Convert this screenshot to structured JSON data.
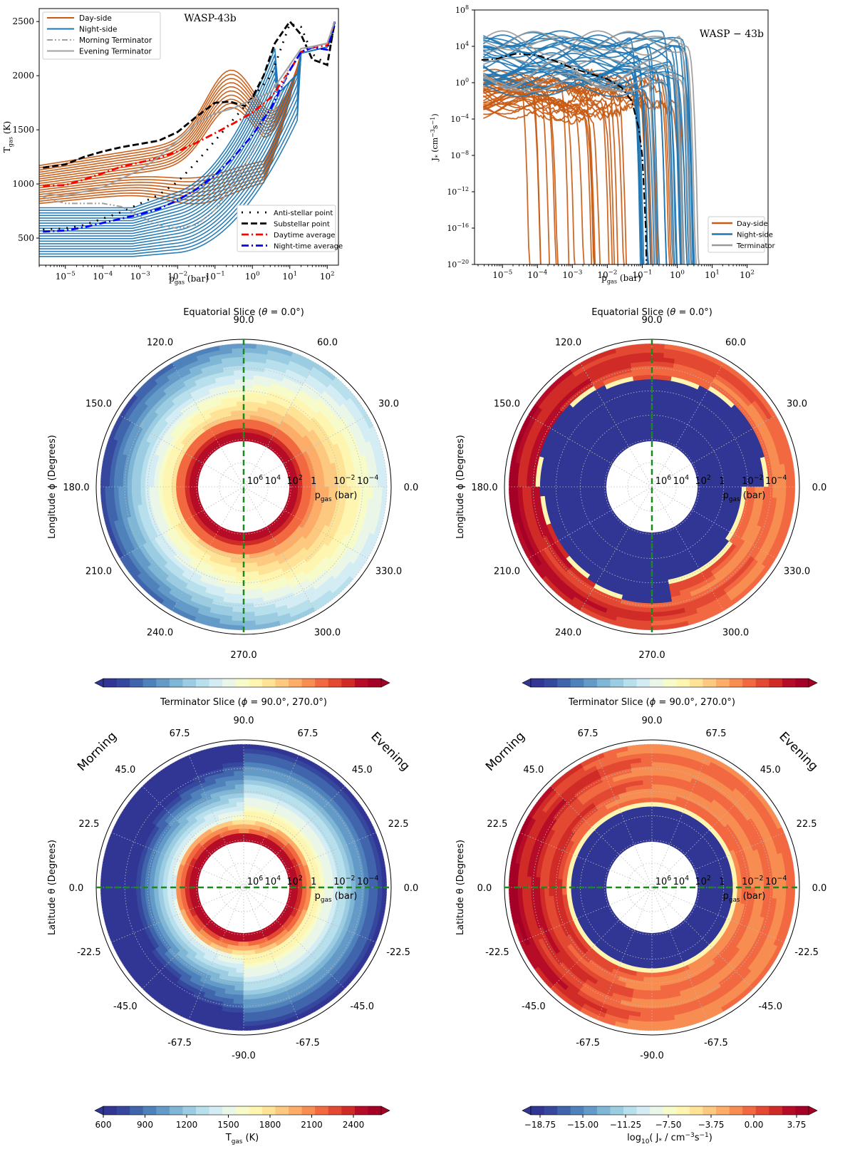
{
  "chart_data": [
    {
      "id": "tp_profiles",
      "type": "line",
      "title": "WASP-43b",
      "xlabel": "p_gas (bar)",
      "xlabel_main": "p",
      "xlabel_sub": "gas",
      "xlabel_unit": "(bar)",
      "ylabel": "T_gas (K)",
      "ylabel_main": "T",
      "ylabel_sub": "gas",
      "ylabel_unit": "(K)",
      "xscale": "log",
      "xlim_log10": [
        -5.7,
        2.3
      ],
      "ylim": [
        250,
        2620
      ],
      "xticks": [
        {
          "exp": -5,
          "label": "10",
          "sup": "−5"
        },
        {
          "exp": -4,
          "label": "10",
          "sup": "−4"
        },
        {
          "exp": -3,
          "label": "10",
          "sup": "−3"
        },
        {
          "exp": -2,
          "label": "10",
          "sup": "−2"
        },
        {
          "exp": -1,
          "label": "10",
          "sup": "−1"
        },
        {
          "exp": 0,
          "label": "10",
          "sup": "0"
        },
        {
          "exp": 1,
          "label": "10",
          "sup": "1"
        },
        {
          "exp": 2,
          "label": "10",
          "sup": "2"
        }
      ],
      "yticks": [
        500,
        1000,
        1500,
        2000,
        2500
      ],
      "legend_upper_left": [
        {
          "label": "Day-side",
          "color": "#c85a12",
          "style": "solid"
        },
        {
          "label": "Night-side",
          "color": "#1f77b4",
          "style": "solid"
        },
        {
          "label": "Morning Terminator",
          "color": "#a0a0a0",
          "style": "dashdotdot"
        },
        {
          "label": "Evening Terminator",
          "color": "#a0a0a0",
          "style": "solid"
        }
      ],
      "legend_lower_right": [
        {
          "label": "Anti-stellar point",
          "color": "#000000",
          "style": "dotted"
        },
        {
          "label": "Substellar point",
          "color": "#000000",
          "style": "dashed"
        },
        {
          "label": "Daytime average",
          "color": "#ff0000",
          "style": "dashdot"
        },
        {
          "label": "Night-time average",
          "color": "#0000ff",
          "style": "dashdot"
        }
      ],
      "series": [
        {
          "name": "Substellar point",
          "color": "#000000",
          "style": "dashed",
          "x_log10": [
            -5.6,
            -5,
            -4.5,
            -4,
            -3.5,
            -3,
            -2.5,
            -2,
            -1.5,
            -1,
            -0.6,
            -0.2,
            0,
            0.3,
            0.6,
            1,
            1.3,
            1.6,
            2,
            2.2
          ],
          "y": [
            1150,
            1180,
            1250,
            1300,
            1340,
            1370,
            1400,
            1480,
            1620,
            1750,
            1760,
            1720,
            1800,
            2000,
            2300,
            2500,
            2380,
            2150,
            2100,
            2500
          ]
        },
        {
          "name": "Anti-stellar point",
          "color": "#000000",
          "style": "dotted",
          "x_log10": [
            -5.6,
            -5,
            -4.5,
            -4,
            -3.5,
            -3,
            -2.5,
            -2,
            -1.5,
            -1,
            -0.5,
            0,
            0.5,
            1,
            1.3,
            1.6,
            2,
            2.2
          ],
          "y": [
            580,
            590,
            620,
            680,
            740,
            820,
            900,
            1020,
            1200,
            1400,
            1600,
            1800,
            2000,
            2480,
            2450,
            2200,
            2100,
            2500
          ]
        },
        {
          "name": "Daytime average",
          "color": "#ff0000",
          "style": "dashdot",
          "x_log10": [
            -5.6,
            -5,
            -4.5,
            -4,
            -3.5,
            -3,
            -2.5,
            -2,
            -1.5,
            -1,
            -0.5,
            0,
            0.5,
            1,
            1.3,
            1.6,
            2,
            2.2
          ],
          "y": [
            980,
            990,
            1040,
            1100,
            1160,
            1200,
            1240,
            1300,
            1380,
            1470,
            1560,
            1660,
            1800,
            2050,
            2220,
            2260,
            2280,
            2500
          ]
        },
        {
          "name": "Night-time average",
          "color": "#0000ff",
          "style": "dashdot",
          "x_log10": [
            -5.6,
            -5,
            -4.5,
            -4,
            -3.5,
            -3,
            -2.5,
            -2,
            -1.5,
            -1,
            -0.5,
            0,
            0.5,
            1,
            1.3,
            1.6,
            2,
            2.2
          ],
          "y": [
            560,
            570,
            600,
            640,
            680,
            720,
            770,
            850,
            950,
            1080,
            1250,
            1450,
            1700,
            2050,
            2220,
            2260,
            2240,
            2500
          ]
        },
        {
          "name": "Morning Terminator",
          "color": "#a0a0a0",
          "style": "dashdotdot",
          "x_log10": [
            -5.6,
            -5,
            -4.5,
            -4,
            -3.5,
            -3,
            -2.5,
            -2,
            -1.5,
            -1,
            -0.5,
            0,
            0.5,
            1,
            1.3,
            1.6,
            2,
            2.2
          ],
          "y": [
            880,
            820,
            820,
            820,
            790,
            700,
            620,
            590,
            620,
            760,
            1000,
            1300,
            1600,
            2100,
            2250,
            2260,
            2300,
            2500
          ]
        },
        {
          "name": "Evening Terminator",
          "color": "#a0a0a0",
          "style": "solid",
          "x_log10": [
            -5.6,
            -5,
            -4.5,
            -4,
            -3.5,
            -3,
            -2.5,
            -2,
            -1.5,
            -1,
            -0.5,
            0,
            0.5,
            1,
            1.3,
            1.6,
            2,
            2.2
          ],
          "y": [
            910,
            890,
            930,
            970,
            1050,
            1130,
            1250,
            1400,
            1560,
            1650,
            1700,
            1780,
            1850,
            2100,
            2250,
            2270,
            2300,
            2500
          ]
        }
      ],
      "bundles": [
        {
          "name": "Day-side",
          "color": "#c85a12",
          "count": 18,
          "y_low_start": 820,
          "y_high_start": 1170
        },
        {
          "name": "Night-side",
          "color": "#1f77b4",
          "count": 20,
          "y_low_start": 330,
          "y_high_start": 780
        }
      ]
    },
    {
      "id": "nucleation_profiles",
      "type": "line",
      "title": "WASP − 43b",
      "xlabel": "p_gas (bar)",
      "xlabel_main": "p",
      "xlabel_sub": "gas",
      "xlabel_unit": "(bar)",
      "ylabel": "J* (cm^-3 s^-1)",
      "ylabel_main": "J",
      "ylabel_sub": "*",
      "ylabel_unit": "(cm",
      "xscale": "log",
      "yscale": "log",
      "xlim_log10": [
        -5.8,
        2.6
      ],
      "ylim_log10": [
        -20,
        8
      ],
      "xticks": [
        {
          "exp": -5,
          "label": "10",
          "sup": "−5"
        },
        {
          "exp": -4,
          "label": "10",
          "sup": "−4"
        },
        {
          "exp": -3,
          "label": "10",
          "sup": "−3"
        },
        {
          "exp": -2,
          "label": "10",
          "sup": "−2"
        },
        {
          "exp": -1,
          "label": "10",
          "sup": "−1"
        },
        {
          "exp": 0,
          "label": "10",
          "sup": "0"
        },
        {
          "exp": 1,
          "label": "10",
          "sup": "1"
        },
        {
          "exp": 2,
          "label": "10",
          "sup": "2"
        }
      ],
      "yticks": [
        {
          "exp": 8,
          "label": "10",
          "sup": "8"
        },
        {
          "exp": 4,
          "label": "10",
          "sup": "4"
        },
        {
          "exp": 0,
          "label": "10",
          "sup": "0"
        },
        {
          "exp": -4,
          "label": "10",
          "sup": "−4"
        },
        {
          "exp": -8,
          "label": "10",
          "sup": "−8"
        },
        {
          "exp": -12,
          "label": "10",
          "sup": "−12"
        },
        {
          "exp": -16,
          "label": "10",
          "sup": "−16"
        },
        {
          "exp": -20,
          "label": "10",
          "sup": "−20"
        }
      ],
      "legend": [
        {
          "label": "Day-side",
          "color": "#c85a12"
        },
        {
          "label": "Night-side",
          "color": "#1f77b4"
        },
        {
          "label": "Terminator",
          "color": "#999999"
        }
      ],
      "bundles": [
        {
          "name": "Day-side",
          "color": "#c85a12",
          "count": 30,
          "y_start_range_log10": [
            -3,
            0.5
          ],
          "cutoff_range_log10": [
            -4.6,
            0.3
          ]
        },
        {
          "name": "Night-side",
          "color": "#1f77b4",
          "count": 30,
          "y_start_range_log10": [
            -1,
            5
          ],
          "cutoff_range_log10": [
            -1.2,
            0.55
          ]
        },
        {
          "name": "Terminator",
          "color": "#999999",
          "count": 8,
          "y_start_range_log10": [
            -0.5,
            4.8
          ],
          "cutoff_range_log10": [
            -1.3,
            0.55
          ]
        }
      ],
      "series": [
        {
          "name": "Substellar point",
          "color": "#000000",
          "style": "dashdot",
          "x_log10": [
            -5.6,
            -5.2,
            -4.6,
            -4,
            -3.5,
            -3,
            -2.5,
            -2,
            -1.6,
            -1.3,
            -1.1,
            -1.0,
            -0.95,
            -0.9,
            -0.88
          ],
          "y_log10": [
            2.5,
            2.6,
            3.2,
            3.0,
            2.4,
            1.6,
            1.0,
            0.4,
            -0.5,
            -2,
            -5,
            -8,
            -12,
            -16,
            -20
          ]
        }
      ]
    },
    {
      "id": "tgas_equatorial",
      "type": "heatmap",
      "projection": "polar",
      "title": "Equatorial Slice (θ = 0.0°)",
      "title_pre": "Equatorial Slice (",
      "title_sym": "θ",
      "title_post": " = 0.0°)",
      "ylabel": "Longitude ϕ (Degrees)",
      "angle_ticks": [
        "0.0",
        "30.0",
        "60.0",
        "90.0",
        "120.0",
        "150.0",
        "180.0",
        "210.0",
        "240.0",
        "270.0",
        "300.0",
        "330.0"
      ],
      "radial_ticks": [
        {
          "label": "10",
          "sup": "6"
        },
        {
          "label": "10",
          "sup": "4"
        },
        {
          "label": "10",
          "sup": "2"
        },
        {
          "label": "1",
          "sup": ""
        },
        {
          "label": "10",
          "sup": "−2"
        },
        {
          "label": "10",
          "sup": "−4"
        }
      ],
      "radial_label_main": "p",
      "radial_label_sub": "gas",
      "radial_label_unit": "(bar)",
      "reference_line": "vertical",
      "quantity": "T_gas",
      "colormap": "RdYlBu_r",
      "field_description": "hot inner red ring at deep pressure; dayside (right) warm yellow at 1 bar; nightside (left) dark blue at low pressure"
    },
    {
      "id": "jstar_equatorial",
      "type": "heatmap",
      "projection": "polar",
      "title": "Equatorial Slice (θ = 0.0°)",
      "title_pre": "Equatorial Slice (",
      "title_sym": "θ",
      "title_post": " = 0.0°)",
      "ylabel": "Longitude ϕ (Degrees)",
      "angle_ticks": [
        "0.0",
        "30.0",
        "60.0",
        "90.0",
        "120.0",
        "150.0",
        "180.0",
        "210.0",
        "240.0",
        "270.0",
        "300.0",
        "330.0"
      ],
      "radial_ticks": [
        {
          "label": "10",
          "sup": "6"
        },
        {
          "label": "10",
          "sup": "4"
        },
        {
          "label": "10",
          "sup": "2"
        },
        {
          "label": "1",
          "sup": ""
        },
        {
          "label": "10",
          "sup": "−2"
        },
        {
          "label": "10",
          "sup": "−4"
        }
      ],
      "radial_label_main": "p",
      "radial_label_sub": "gas",
      "radial_label_unit": "(bar)",
      "reference_line": "vertical",
      "quantity": "log10 J*",
      "colormap": "RdYlBu_r",
      "field_description": "deep region no nucleation (dark blue); upper atmosphere orange-red, strongest on nightside (left)"
    },
    {
      "id": "tgas_terminator",
      "type": "heatmap",
      "projection": "polar",
      "title": "Terminator Slice (ϕ = 90.0°, 270.0°)",
      "title_pre": "Terminator Slice (",
      "title_sym": "ϕ",
      "title_post": " = 90.0°, 270.0°)",
      "ylabel": "Latitude θ (Degrees)",
      "angle_ticks_left": [
        "90.0",
        "67.5",
        "45.0",
        "22.5",
        "0.0",
        "-22.5",
        "-45.0",
        "-67.5",
        "-90.0"
      ],
      "angle_ticks_right": [
        "67.5",
        "45.0",
        "22.5",
        "0.0",
        "-22.5",
        "-45.0",
        "-67.5"
      ],
      "side_labels": {
        "left": "Morning",
        "right": "Evening"
      },
      "radial_ticks": [
        {
          "label": "10",
          "sup": "6"
        },
        {
          "label": "10",
          "sup": "4"
        },
        {
          "label": "10",
          "sup": "2"
        },
        {
          "label": "1",
          "sup": ""
        },
        {
          "label": "10",
          "sup": "−2"
        },
        {
          "label": "10",
          "sup": "−4"
        }
      ],
      "radial_label_main": "p",
      "radial_label_sub": "gas",
      "radial_label_unit": "(bar)",
      "reference_line": "horizontal",
      "quantity": "T_gas",
      "colormap": "RdYlBu_r",
      "colorbar": {
        "label_main": "T",
        "label_sub": "gas",
        "label_unit": "(K)",
        "ticks": [
          "600",
          "900",
          "1200",
          "1500",
          "1800",
          "2100",
          "2400"
        ],
        "range": [
          600,
          2600
        ],
        "step": 100,
        "extend": "both"
      }
    },
    {
      "id": "jstar_terminator",
      "type": "heatmap",
      "projection": "polar",
      "title": "Terminator Slice (ϕ = 90.0°, 270.0°)",
      "title_pre": "Terminator Slice (",
      "title_sym": "ϕ",
      "title_post": " = 90.0°, 270.0°)",
      "ylabel": "Latitude θ (Degrees)",
      "angle_ticks_left": [
        "90.0",
        "67.5",
        "45.0",
        "22.5",
        "0.0",
        "-22.5",
        "-45.0",
        "-67.5",
        "-90.0"
      ],
      "angle_ticks_right": [
        "67.5",
        "45.0",
        "22.5",
        "0.0",
        "-22.5",
        "-45.0",
        "-67.5"
      ],
      "side_labels": {
        "left": "Morning",
        "right": "Evening"
      },
      "radial_ticks": [
        {
          "label": "10",
          "sup": "6"
        },
        {
          "label": "10",
          "sup": "4"
        },
        {
          "label": "10",
          "sup": "2"
        },
        {
          "label": "1",
          "sup": ""
        },
        {
          "label": "10",
          "sup": "−2"
        },
        {
          "label": "10",
          "sup": "−4"
        }
      ],
      "radial_label_main": "p",
      "radial_label_sub": "gas",
      "radial_label_unit": "(bar)",
      "reference_line": "horizontal",
      "quantity": "log10 J*",
      "colormap": "RdYlBu_r",
      "colorbar": {
        "label": "log10( J* / cm^-3 s^-1)",
        "label_pre": "log",
        "label_sub": "10",
        "label_mid": "( J",
        "label_star": "*",
        "label_unit": " / cm",
        "ticks": [
          "−18.75",
          "−15.00",
          "−11.25",
          "−7.50",
          "−3.75",
          "0.00",
          "3.75"
        ],
        "range": [
          -20,
          5.5
        ],
        "extend": "both"
      }
    }
  ],
  "colormap_colors": [
    "#313695",
    "#36479e",
    "#4065ac",
    "#4f81bb",
    "#649ac7",
    "#7fb6d6",
    "#9bcce2",
    "#b8dfec",
    "#d4edf4",
    "#e9f6e8",
    "#f6fbc9",
    "#fef6b0",
    "#fee397",
    "#fdc980",
    "#fdad68",
    "#f88d52",
    "#f26941",
    "#e34932",
    "#d02b27",
    "#b70c27",
    "#a50026"
  ]
}
